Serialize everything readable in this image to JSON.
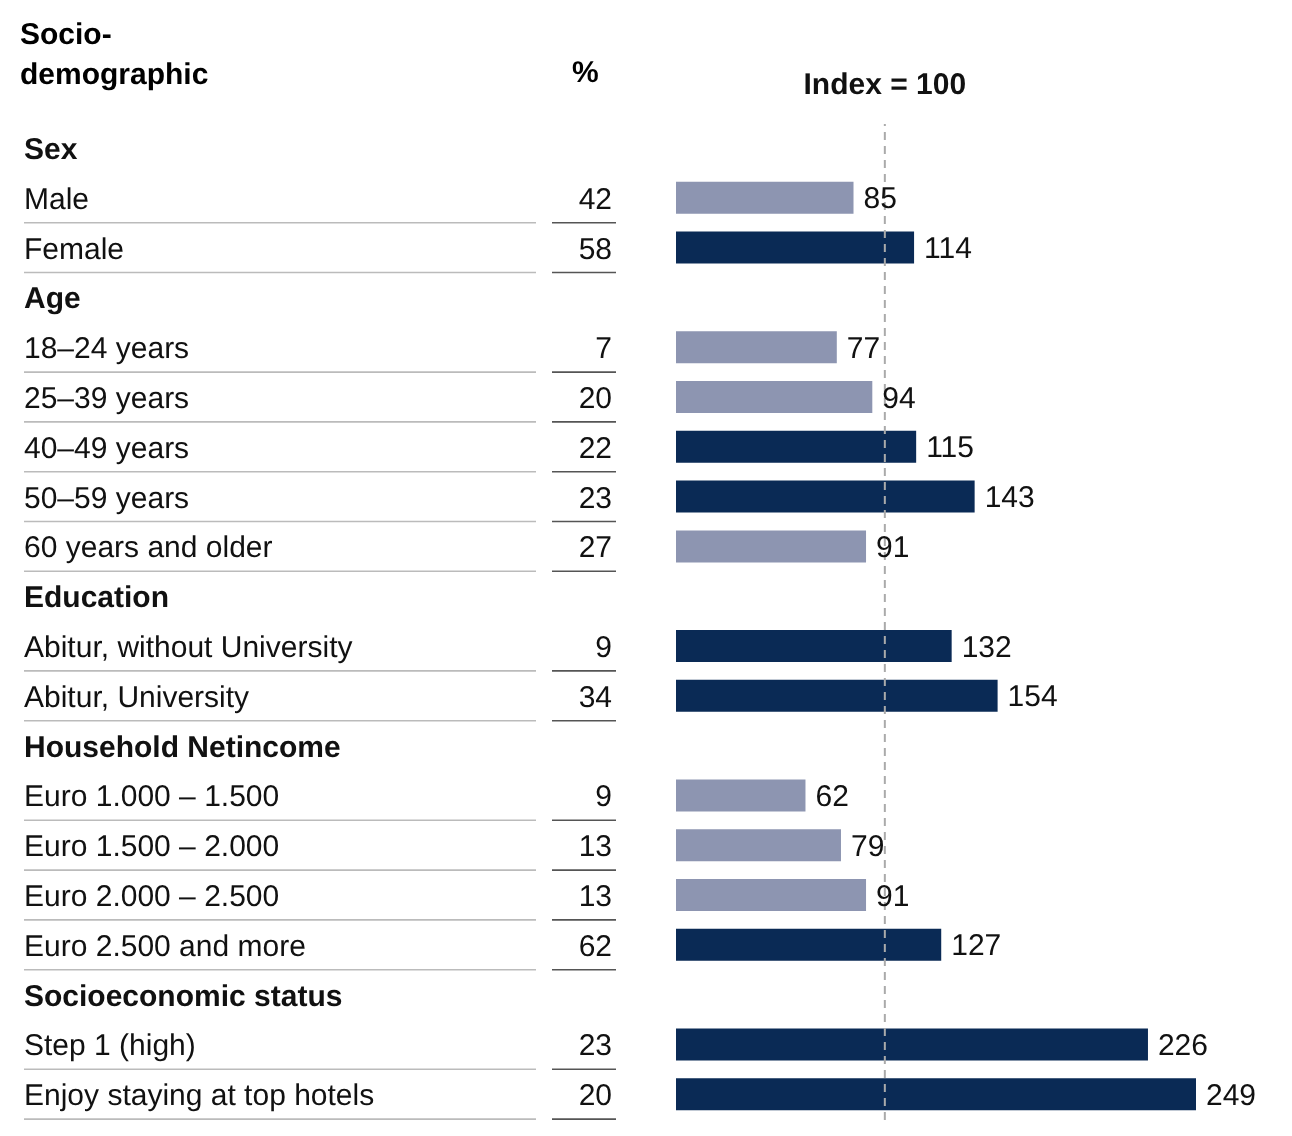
{
  "chart_data": {
    "type": "bar",
    "orientation": "horizontal",
    "ylabel": "Socio-demographic",
    "categories": [
      "Sex",
      "Male",
      "Female",
      "Age",
      "18–24 years",
      "25–39 years",
      "40–49 years",
      "50–59 years",
      "60 years and older",
      "Education",
      "Abitur, without University",
      "Abitur, University",
      "Household Netincome",
      "Euro 1.000 – 1.500",
      "Euro 1.500 – 2.000",
      "Euro 2.000 – 2.500",
      "Euro 2.500 and more",
      "Socioeconomic status",
      "Step 1 (high)",
      "Enjoy staying at top hotels"
    ],
    "values": [
      null,
      85,
      114,
      null,
      77,
      94,
      115,
      143,
      91,
      null,
      132,
      154,
      null,
      62,
      79,
      91,
      127,
      null,
      226,
      249
    ],
    "colors": [
      null,
      "#8d95b1",
      "#0a2a55",
      null,
      "#8d95b1",
      "#8d95b1",
      "#0a2a55",
      "#0a2a55",
      "#8d95b1",
      null,
      "#0a2a55",
      "#0a2a55",
      null,
      "#8d95b1",
      "#8d95b1",
      "#8d95b1",
      "#0a2a55",
      null,
      "#0a2a55",
      "#0a2a55"
    ],
    "tick_labels": false,
    "data_labels": true,
    "legend": false,
    "grid": false,
    "ref_lines": [
      {
        "axis": "x",
        "value": 100,
        "label": "Index = 100",
        "color": "#aaaaaa",
        "line_style": "dashed"
      }
    ],
    "annotations": [
      "%",
      "42",
      "58",
      "7",
      "20",
      "22",
      "23",
      "27",
      "9",
      "34",
      "9",
      "13",
      "13",
      "62",
      "23",
      "20"
    ]
  }
}
